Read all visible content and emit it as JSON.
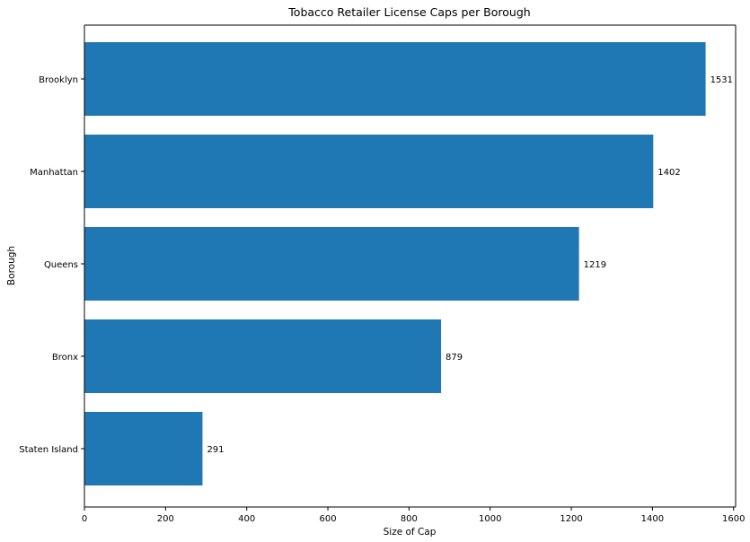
{
  "chart_data": {
    "type": "bar",
    "orientation": "horizontal",
    "title": "Tobacco Retailer License Caps per Borough",
    "xlabel": "Size of Cap",
    "ylabel": "Borough",
    "categories": [
      "Brooklyn",
      "Manhattan",
      "Queens",
      "Bronx",
      "Staten Island"
    ],
    "values": [
      1531,
      1402,
      1219,
      879,
      291
    ],
    "data_labels": [
      "1531",
      "1402",
      "1219",
      "879",
      "291"
    ],
    "xlim": [
      0,
      1605
    ],
    "xticks": [
      0,
      200,
      400,
      600,
      800,
      1000,
      1200,
      1400,
      1600
    ],
    "grid": false,
    "bar_color": "#1f77b4"
  }
}
